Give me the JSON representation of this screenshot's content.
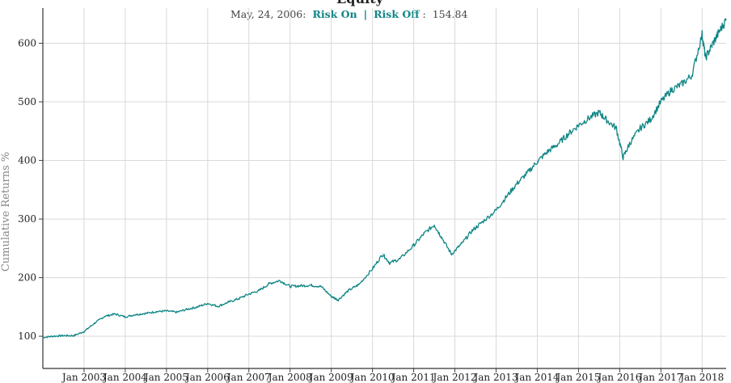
{
  "chart_data": {
    "type": "line",
    "title": "Equity",
    "tooltip": {
      "date": "May, 24, 2006:",
      "series_a": "Risk On",
      "separator": "|",
      "series_b": "Risk Off",
      "suffix": ":",
      "value": "154.84"
    },
    "xlabel": "",
    "ylabel": "Cumulative Returns %",
    "ylim": [
      45,
      660
    ],
    "yticks": [
      100,
      200,
      300,
      400,
      500,
      600
    ],
    "xticks": [
      "Jan 2003",
      "Jan 2004",
      "Jan 2005",
      "Jan 2006",
      "Jan 2007",
      "Jan 2008",
      "Jan 2009",
      "Jan 2010",
      "Jan 2011",
      "Jan 2012",
      "Jan 2013",
      "Jan 2014",
      "Jan 2015",
      "Jan 2016",
      "Jan 2017",
      "Jan 2018"
    ],
    "xlim": [
      "2002-01",
      "2018-08"
    ],
    "grid": true,
    "line_color": "#0f8585",
    "series": [
      {
        "x": [
          "2002-01",
          "2002-04",
          "2002-07",
          "2002-10",
          "2003-01",
          "2003-04",
          "2003-07",
          "2003-10",
          "2004-01",
          "2004-04",
          "2004-07",
          "2004-10",
          "2005-01",
          "2005-04",
          "2005-07",
          "2005-10",
          "2006-01",
          "2006-04",
          "2006-07",
          "2006-10",
          "2007-01",
          "2007-04",
          "2007-07",
          "2007-10",
          "2008-01",
          "2008-04",
          "2008-07",
          "2008-10",
          "2009-01",
          "2009-03",
          "2009-06",
          "2009-09",
          "2010-01",
          "2010-04",
          "2010-06",
          "2010-09",
          "2011-01",
          "2011-04",
          "2011-07",
          "2011-09",
          "2011-12",
          "2012-03",
          "2012-06",
          "2012-09",
          "2013-01",
          "2013-04",
          "2013-07",
          "2013-10",
          "2014-01",
          "2014-04",
          "2014-07",
          "2014-10",
          "2015-01",
          "2015-04",
          "2015-07",
          "2015-09",
          "2015-12",
          "2016-02",
          "2016-04",
          "2016-07",
          "2016-10",
          "2017-01",
          "2017-04",
          "2017-07",
          "2017-10",
          "2018-01",
          "2018-02",
          "2018-04",
          "2018-06",
          "2018-08"
        ],
        "values": [
          98,
          100,
          101,
          101,
          108,
          122,
          134,
          138,
          133,
          137,
          139,
          142,
          143,
          141,
          146,
          150,
          156,
          151,
          158,
          164,
          172,
          178,
          190,
          195,
          185,
          186,
          187,
          185,
          168,
          162,
          178,
          188,
          215,
          240,
          225,
          232,
          255,
          275,
          290,
          270,
          240,
          258,
          280,
          295,
          315,
          338,
          360,
          378,
          398,
          415,
          428,
          445,
          460,
          472,
          482,
          470,
          455,
          405,
          430,
          455,
          470,
          500,
          520,
          530,
          545,
          615,
          575,
          598,
          620,
          640
        ]
      }
    ]
  }
}
